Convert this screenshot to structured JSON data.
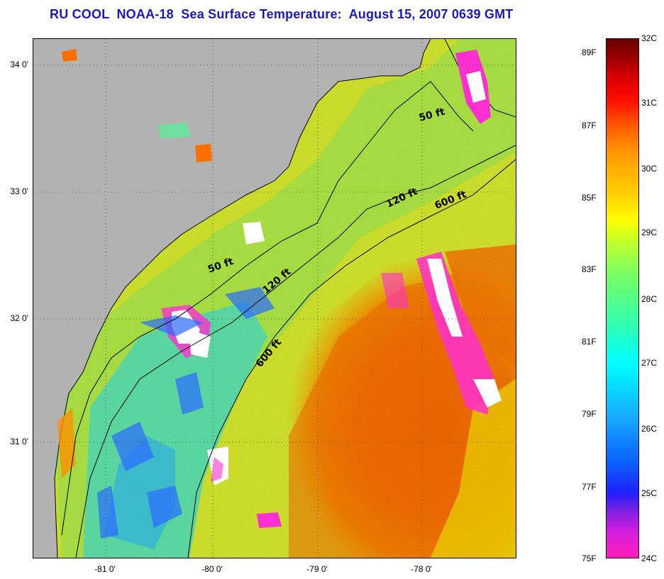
{
  "title": "RU COOL  NOAA-18  Sea Surface Temperature:  August 15, 2007 0639 GMT",
  "map": {
    "latitude_labels": [
      "34 0'",
      "33 0'",
      "32 0'",
      "31 0'"
    ],
    "longitude_labels": [
      "-81 0'",
      "-80 0'",
      "-79 0'",
      "-78 0'"
    ],
    "land_color": "#b2b2b2",
    "cloud_color": "#ffffff",
    "depth_contours": [
      {
        "depth": "50 ft",
        "labels": [
          "50 ft",
          "50 ft"
        ]
      },
      {
        "depth": "120 ft",
        "labels": [
          "120 ft",
          "120 ft"
        ]
      },
      {
        "depth": "600 ft",
        "labels": [
          "600 ft",
          "600 ft"
        ]
      }
    ]
  },
  "colorbar": {
    "celsius_labels": [
      "32C",
      "31C",
      "30C",
      "29C",
      "28C",
      "27C",
      "26C",
      "25C",
      "24C"
    ],
    "fahrenheit_labels": [
      "89F",
      "87F",
      "85F",
      "83F",
      "81F",
      "79F",
      "77F",
      "75F"
    ],
    "range_c": [
      24,
      32
    ],
    "range_f": [
      75,
      89.6
    ]
  }
}
